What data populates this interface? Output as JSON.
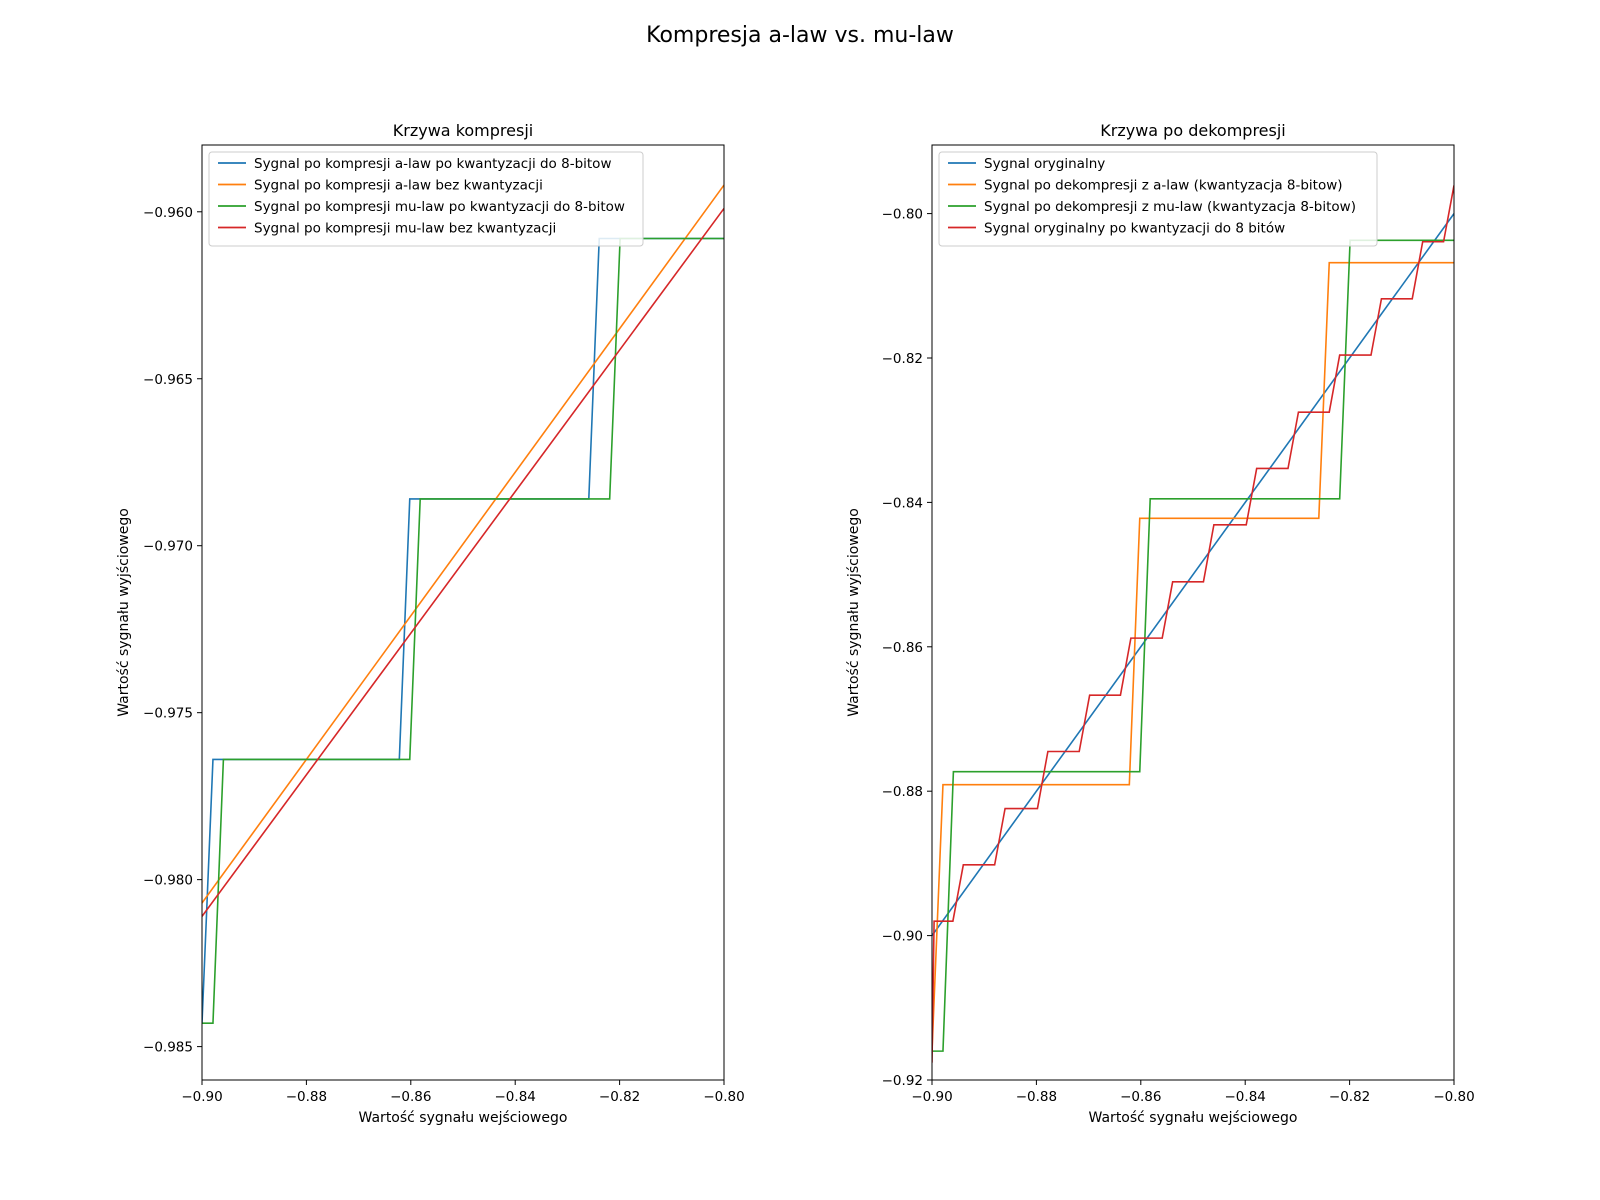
{
  "figure": {
    "title": "Kompresja a-law vs. mu-law"
  },
  "chart_data": [
    {
      "type": "line",
      "title": "Krzywa kompresji",
      "xlabel": "Wartość sygnału wejściowego",
      "ylabel": "Wartość sygnału wyjściowego",
      "xlim": [
        -0.9,
        -0.8
      ],
      "ylim": [
        -0.986,
        -0.958
      ],
      "xticks": [
        -0.9,
        -0.88,
        -0.86,
        -0.84,
        -0.82,
        -0.8
      ],
      "xtick_labels": [
        "−0.90",
        "−0.88",
        "−0.86",
        "−0.84",
        "−0.82",
        "−0.80"
      ],
      "yticks": [
        -0.985,
        -0.98,
        -0.975,
        -0.97,
        -0.965,
        -0.96
      ],
      "ytick_labels": [
        "−0.985",
        "−0.980",
        "−0.975",
        "−0.970",
        "−0.965",
        "−0.960"
      ],
      "legend": "top-left",
      "grid": false,
      "series": [
        {
          "name": "Sygnal po kompresji a-law po kwantyzacji do 8-bitow",
          "color": "#1f77b4",
          "points": [
            [
              -0.9,
              -0.9843
            ],
            [
              -0.8979,
              -0.9764
            ],
            [
              -0.8622,
              -0.9764
            ],
            [
              -0.8602,
              -0.9686
            ],
            [
              -0.8259,
              -0.9686
            ],
            [
              -0.8239,
              -0.9608
            ],
            [
              -0.8,
              -0.9608
            ]
          ]
        },
        {
          "name": "Sygnal po kompresji a-law bez kwantyzacji",
          "color": "#ff7f0e",
          "points": [
            [
              -0.9,
              -0.9807
            ],
            [
              -0.8,
              -0.9592
            ]
          ]
        },
        {
          "name": "Sygnal po kompresji mu-law po kwantyzacji do 8-bitow",
          "color": "#2ca02c",
          "points": [
            [
              -0.9,
              -0.9843
            ],
            [
              -0.8979,
              -0.9843
            ],
            [
              -0.8959,
              -0.9764
            ],
            [
              -0.8602,
              -0.9764
            ],
            [
              -0.8582,
              -0.9686
            ],
            [
              -0.8219,
              -0.9686
            ],
            [
              -0.8199,
              -0.9608
            ],
            [
              -0.8,
              -0.9608
            ]
          ]
        },
        {
          "name": "Sygnal po kompresji mu-law bez kwantyzacji",
          "color": "#d62728",
          "points": [
            [
              -0.9,
              -0.9811
            ],
            [
              -0.8,
              -0.9599
            ]
          ]
        }
      ]
    },
    {
      "type": "line",
      "title": "Krzywa po dekompresji",
      "xlabel": "Wartość sygnału wejściowego",
      "ylabel": "Wartość sygnału wyjściowego",
      "xlim": [
        -0.9,
        -0.8
      ],
      "ylim": [
        -0.92,
        -0.7905
      ],
      "xticks": [
        -0.9,
        -0.88,
        -0.86,
        -0.84,
        -0.82,
        -0.8
      ],
      "xtick_labels": [
        "−0.90",
        "−0.88",
        "−0.86",
        "−0.84",
        "−0.82",
        "−0.80"
      ],
      "yticks": [
        -0.92,
        -0.9,
        -0.88,
        -0.86,
        -0.84,
        -0.82,
        -0.8
      ],
      "ytick_labels": [
        "−0.92",
        "−0.90",
        "−0.88",
        "−0.86",
        "−0.84",
        "−0.82",
        "−0.80"
      ],
      "legend": "top-left",
      "grid": false,
      "series": [
        {
          "name": "Sygnal oryginalny",
          "color": "#1f77b4",
          "points": [
            [
              -0.9,
              -0.9
            ],
            [
              -0.8,
              -0.8
            ]
          ]
        },
        {
          "name": "Sygnal po dekompresji z a-law (kwantyzacja 8-bitow)",
          "color": "#ff7f0e",
          "points": [
            [
              -0.9,
              -0.916
            ],
            [
              -0.8979,
              -0.8791
            ],
            [
              -0.8622,
              -0.8791
            ],
            [
              -0.8602,
              -0.8422
            ],
            [
              -0.8259,
              -0.8422
            ],
            [
              -0.8239,
              -0.8068
            ],
            [
              -0.8,
              -0.8068
            ]
          ]
        },
        {
          "name": "Sygnal po dekompresji z mu-law (kwantyzacja 8-bitow)",
          "color": "#2ca02c",
          "points": [
            [
              -0.9,
              -0.916
            ],
            [
              -0.8979,
              -0.916
            ],
            [
              -0.8959,
              -0.8773
            ],
            [
              -0.8602,
              -0.8773
            ],
            [
              -0.8582,
              -0.8395
            ],
            [
              -0.8219,
              -0.8395
            ],
            [
              -0.8199,
              -0.8037
            ],
            [
              -0.8,
              -0.8037
            ]
          ]
        },
        {
          "name": "Sygnal oryginalny po kwantyzacji do 8 bitów",
          "color": "#d62728",
          "points": [
            [
              -0.9,
              -0.9176
            ],
            [
              -0.8996,
              -0.898
            ],
            [
              -0.896,
              -0.898
            ],
            [
              -0.894,
              -0.8902
            ],
            [
              -0.888,
              -0.8902
            ],
            [
              -0.886,
              -0.8824
            ],
            [
              -0.8798,
              -0.8824
            ],
            [
              -0.8778,
              -0.8745
            ],
            [
              -0.8718,
              -0.8745
            ],
            [
              -0.8698,
              -0.8667
            ],
            [
              -0.8639,
              -0.8667
            ],
            [
              -0.8619,
              -0.8588
            ],
            [
              -0.8559,
              -0.8588
            ],
            [
              -0.8539,
              -0.851
            ],
            [
              -0.848,
              -0.851
            ],
            [
              -0.846,
              -0.8431
            ],
            [
              -0.8398,
              -0.8431
            ],
            [
              -0.8378,
              -0.8353
            ],
            [
              -0.8318,
              -0.8353
            ],
            [
              -0.8298,
              -0.8275
            ],
            [
              -0.8239,
              -0.8275
            ],
            [
              -0.8219,
              -0.8196
            ],
            [
              -0.8159,
              -0.8196
            ],
            [
              -0.8139,
              -0.8118
            ],
            [
              -0.808,
              -0.8118
            ],
            [
              -0.806,
              -0.8039
            ],
            [
              -0.802,
              -0.8039
            ],
            [
              -0.8,
              -0.7961
            ]
          ]
        }
      ]
    }
  ]
}
